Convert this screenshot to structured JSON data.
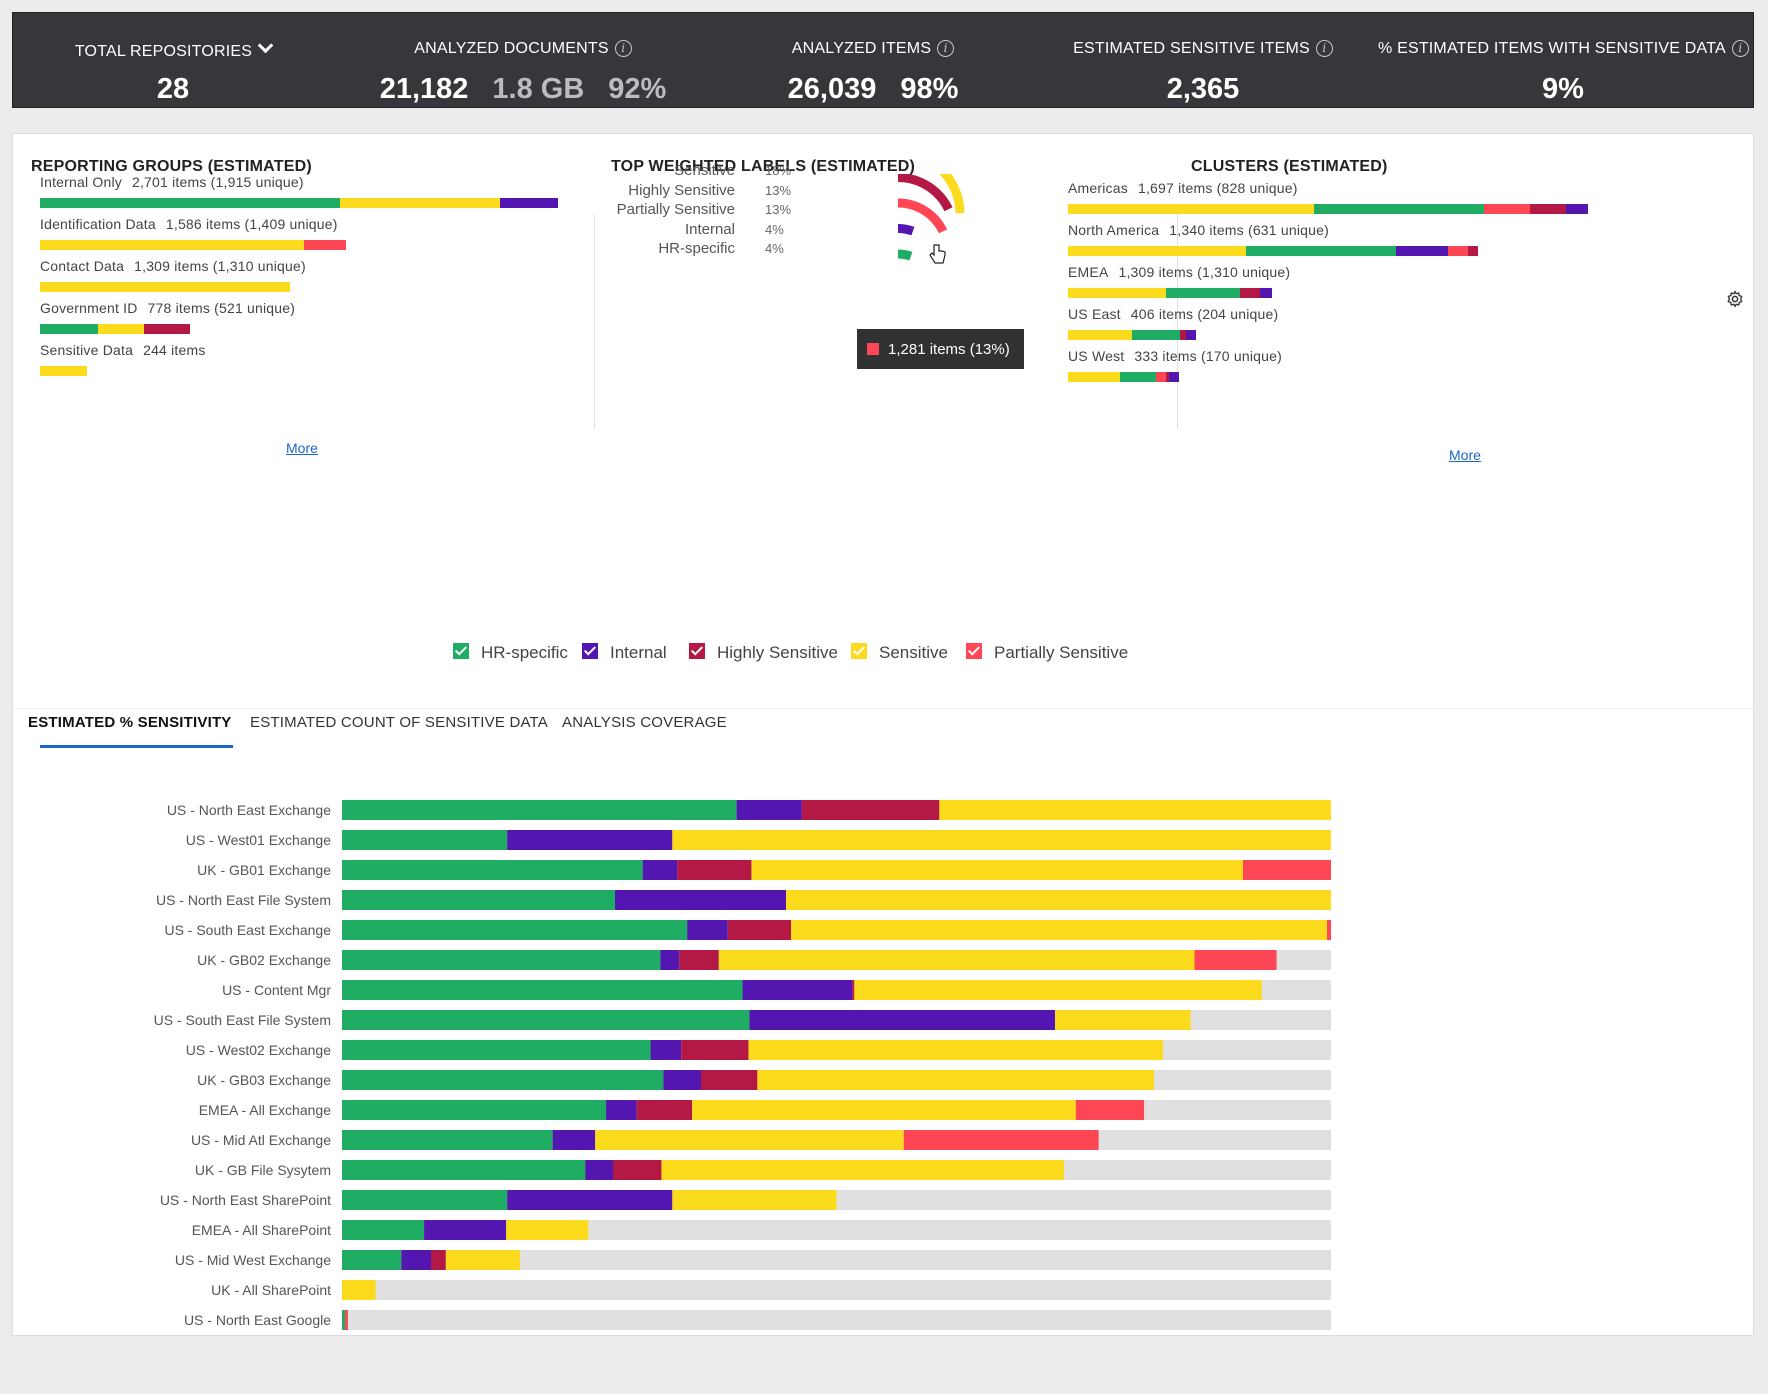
{
  "kpis": {
    "total_repositories": {
      "label": "TOTAL REPOSITORIES",
      "value": "28"
    },
    "analyzed_documents": {
      "label": "ANALYZED DOCUMENTS",
      "count": "21,182",
      "size": "1.8 GB",
      "pct": "92%"
    },
    "analyzed_items": {
      "label": "ANALYZED ITEMS",
      "count": "26,039",
      "pct": "98%"
    },
    "estimated_sensitive": {
      "label": "ESTIMATED SENSITIVE ITEMS",
      "value": "2,365"
    },
    "pct_sensitive": {
      "label": "% ESTIMATED ITEMS WITH SENSITIVE DATA",
      "value": "9%"
    }
  },
  "colors": {
    "HR-specific": "#1ead62",
    "Internal": "#5416b1",
    "Highly Sensitive": "#b41945",
    "Sensitive": "#fcda1c",
    "Partially Sensitive": "#ff4655",
    "remainder": "#e0e0e0"
  },
  "reporting_groups": {
    "title": "REPORTING GROUPS (ESTIMATED)",
    "more": "More",
    "items": [
      {
        "name": "Internal Only",
        "count": "2,701 items (1,915 unique)",
        "segments": [
          [
            "HR-specific",
            300
          ],
          [
            "Sensitive",
            160
          ],
          [
            "Internal",
            58
          ]
        ]
      },
      {
        "name": "Identification Data",
        "count": "1,586 items (1,409 unique)",
        "segments": [
          [
            "Sensitive",
            264
          ],
          [
            "Partially Sensitive",
            42
          ]
        ]
      },
      {
        "name": "Contact Data",
        "count": "1,309 items (1,310 unique)",
        "segments": [
          [
            "Sensitive",
            250
          ]
        ]
      },
      {
        "name": "Government ID",
        "count": "778 items (521 unique)",
        "segments": [
          [
            "HR-specific",
            58
          ],
          [
            "Sensitive",
            46
          ],
          [
            "Highly Sensitive",
            46
          ]
        ]
      },
      {
        "name": "Sensitive Data",
        "count": "244 items",
        "segments": [
          [
            "Sensitive",
            47
          ]
        ]
      }
    ]
  },
  "top_labels": {
    "title": "TOP WEIGHTED LABELS  (ESTIMATED)",
    "items": [
      {
        "name": "Sensitive",
        "pct": "18%",
        "value": 18,
        "key": "Sensitive"
      },
      {
        "name": "Highly Sensitive",
        "pct": "13%",
        "value": 13,
        "key": "Highly Sensitive"
      },
      {
        "name": "Partially Sensitive",
        "pct": "13%",
        "value": 13,
        "key": "Partially Sensitive"
      },
      {
        "name": "Internal",
        "pct": "4%",
        "value": 4,
        "key": "Internal"
      },
      {
        "name": "HR-specific",
        "pct": "4%",
        "value": 4,
        "key": "HR-specific"
      }
    ],
    "tooltip": "1,281 items (13%)"
  },
  "clusters": {
    "title": "CLUSTERS (ESTIMATED)",
    "more": "More",
    "items": [
      {
        "name": "Americas",
        "count": "1,697 items (828 unique)",
        "segments": [
          [
            "Sensitive",
            246
          ],
          [
            "HR-specific",
            170
          ],
          [
            "Partially Sensitive",
            46
          ],
          [
            "Highly Sensitive",
            36
          ],
          [
            "Internal",
            22
          ]
        ]
      },
      {
        "name": "North America",
        "count": "1,340 items (631 unique)",
        "segments": [
          [
            "Sensitive",
            178
          ],
          [
            "HR-specific",
            150
          ],
          [
            "Internal",
            52
          ],
          [
            "Partially Sensitive",
            20
          ],
          [
            "Highly Sensitive",
            10
          ]
        ]
      },
      {
        "name": "EMEA",
        "count": "1,309 items (1,310 unique)",
        "segments": [
          [
            "Sensitive",
            98
          ],
          [
            "HR-specific",
            74
          ],
          [
            "Highly Sensitive",
            20
          ],
          [
            "Internal",
            12
          ]
        ]
      },
      {
        "name": "US East",
        "count": "406 items (204 unique)",
        "segments": [
          [
            "Sensitive",
            64
          ],
          [
            "HR-specific",
            48
          ],
          [
            "Highly Sensitive",
            6
          ],
          [
            "Internal",
            10
          ]
        ]
      },
      {
        "name": "US West",
        "count": "333 items (170 unique)",
        "segments": [
          [
            "Sensitive",
            52
          ],
          [
            "HR-specific",
            36
          ],
          [
            "Partially Sensitive",
            10
          ],
          [
            "Highly Sensitive",
            3
          ],
          [
            "Internal",
            10
          ]
        ]
      }
    ]
  },
  "legend": [
    {
      "key": "HR-specific",
      "label": "HR-specific"
    },
    {
      "key": "Internal",
      "label": "Internal"
    },
    {
      "key": "Highly Sensitive",
      "label": "Highly Sensitive"
    },
    {
      "key": "Sensitive",
      "label": "Sensitive"
    },
    {
      "key": "Partially Sensitive",
      "label": "Partially Sensitive"
    }
  ],
  "tabs": [
    {
      "label": "ESTIMATED % SENSITIVITY",
      "active": true
    },
    {
      "label": "ESTIMATED COUNT OF SENSITIVE DATA",
      "active": false
    },
    {
      "label": "ANALYSIS COVERAGE",
      "active": false
    }
  ],
  "chart_data": {
    "type": "bar",
    "orientation": "horizontal",
    "stacked": true,
    "title": "ESTIMATED % SENSITIVITY",
    "xlim": [
      0,
      100
    ],
    "categories": [
      "US - North East Exchange",
      "US - West01 Exchange",
      "UK - GB01 Exchange",
      "US - North East File System",
      "US - South East Exchange",
      "UK - GB02 Exchange",
      "US - Content Mgr",
      "US - South East File System",
      "US - West02 Exchange",
      "UK - GB03 Exchange",
      "EMEA - All Exchange",
      "US - Mid Atl Exchange",
      "UK - GB File Sysytem",
      "US - North East SharePoint",
      "EMEA - All SharePoint",
      "US - Mid West Exchange",
      "UK - All SharePoint",
      "US - North East Google"
    ],
    "series": [
      {
        "name": "HR-specific",
        "values": [
          39.9,
          16.7,
          30.4,
          27.6,
          34.9,
          32.2,
          40.5,
          41.2,
          31.2,
          32.5,
          26.7,
          21.3,
          24.6,
          16.7,
          8.3,
          6.0,
          0.0,
          0.3
        ]
      },
      {
        "name": "Internal",
        "values": [
          6.6,
          16.7,
          3.5,
          17.3,
          4.1,
          1.9,
          11.1,
          30.9,
          3.1,
          3.8,
          3.1,
          4.3,
          2.8,
          16.7,
          8.3,
          3.0,
          0.0,
          0.0
        ]
      },
      {
        "name": "Highly Sensitive",
        "values": [
          13.9,
          0.0,
          7.5,
          0.0,
          6.4,
          4.0,
          0.2,
          0.0,
          6.8,
          5.7,
          5.6,
          0.0,
          4.9,
          0.0,
          0.0,
          1.5,
          0.0,
          0.0
        ]
      },
      {
        "name": "Sensitive",
        "values": [
          39.6,
          66.6,
          49.7,
          55.1,
          54.2,
          48.1,
          41.2,
          13.7,
          41.9,
          40.1,
          38.8,
          31.2,
          40.7,
          16.6,
          8.3,
          7.5,
          3.4,
          0.0
        ]
      },
      {
        "name": "Partially Sensitive",
        "values": [
          0.0,
          0.0,
          8.9,
          0.0,
          0.4,
          8.3,
          0.0,
          0.0,
          0.0,
          0.0,
          6.9,
          19.7,
          0.0,
          0.0,
          0.0,
          0.0,
          0.0,
          0.3
        ]
      }
    ]
  }
}
